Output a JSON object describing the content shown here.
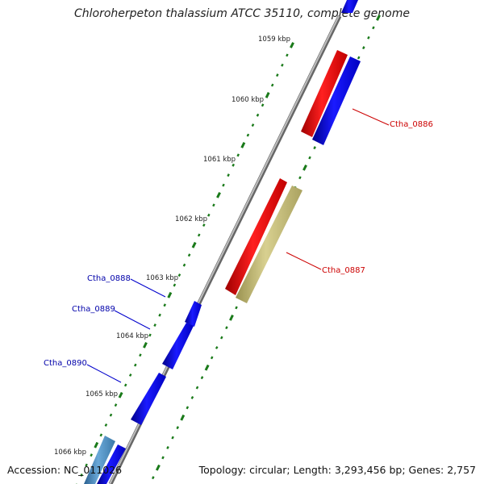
{
  "title": "Chloroherpeton thalassium ATCC 35110, complete genome",
  "footer": {
    "accession": "Accession: NC_011026",
    "topology": "Topology: circular; Length: 3,293,456 bp; Genes: 2,757"
  },
  "colors": {
    "backbone": "#888888",
    "ticks": "#1a7a1a",
    "forward_gene": "#0000ee",
    "reverse_gene": "#ee0000",
    "other_gene": "#c8c080",
    "rna_gene": "#4d8fc0",
    "forward_label": "#0000aa",
    "reverse_label": "#cc0000"
  },
  "kbp_labels": [
    "1059 kbp",
    "1060 kbp",
    "1061 kbp",
    "1062 kbp",
    "1063 kbp",
    "1064 kbp",
    "1065 kbp",
    "1066 kbp"
  ],
  "gene_labels": {
    "ctha_0886": "Ctha_0886",
    "ctha_0887": "Ctha_0887",
    "ctha_0888": "Ctha_0888",
    "ctha_0889": "Ctha_0889",
    "ctha_0890": "Ctha_0890"
  }
}
